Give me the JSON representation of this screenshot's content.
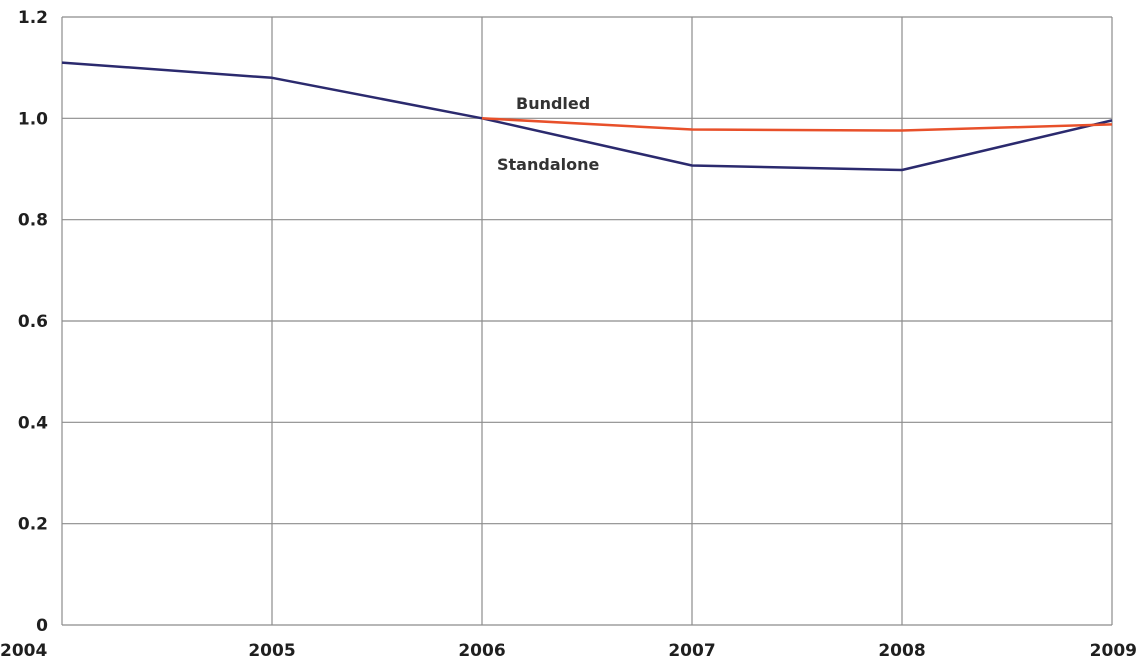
{
  "chart_data": {
    "type": "line",
    "title": "",
    "xlabel": "",
    "ylabel": "",
    "x": [
      2004,
      2005,
      2006,
      2007,
      2008,
      2009
    ],
    "xlim": [
      2004,
      2009
    ],
    "ylim": [
      0,
      1.2
    ],
    "y_ticks": [
      "0",
      "0.2",
      "0.4",
      "0.6",
      "0.8",
      "1.0",
      "1.2"
    ],
    "y_tick_values": [
      0,
      0.2,
      0.4,
      0.6,
      0.8,
      1.0,
      1.2
    ],
    "x_ticks": [
      "2004",
      "2005",
      "2006",
      "2007",
      "2008",
      "2009"
    ],
    "grid": true,
    "legend": "none (series labeled directly on chart)",
    "series": [
      {
        "name": "Standalone",
        "color": "#2b2a6e",
        "x": [
          2004,
          2005,
          2006,
          2007,
          2008,
          2009
        ],
        "values": [
          1.11,
          1.08,
          1.0,
          0.907,
          0.898,
          0.996
        ]
      },
      {
        "name": "Bundled",
        "color": "#e8502a",
        "x": [
          2006,
          2007,
          2008,
          2009
        ],
        "values": [
          1.0,
          0.978,
          0.976,
          0.988
        ]
      }
    ]
  }
}
